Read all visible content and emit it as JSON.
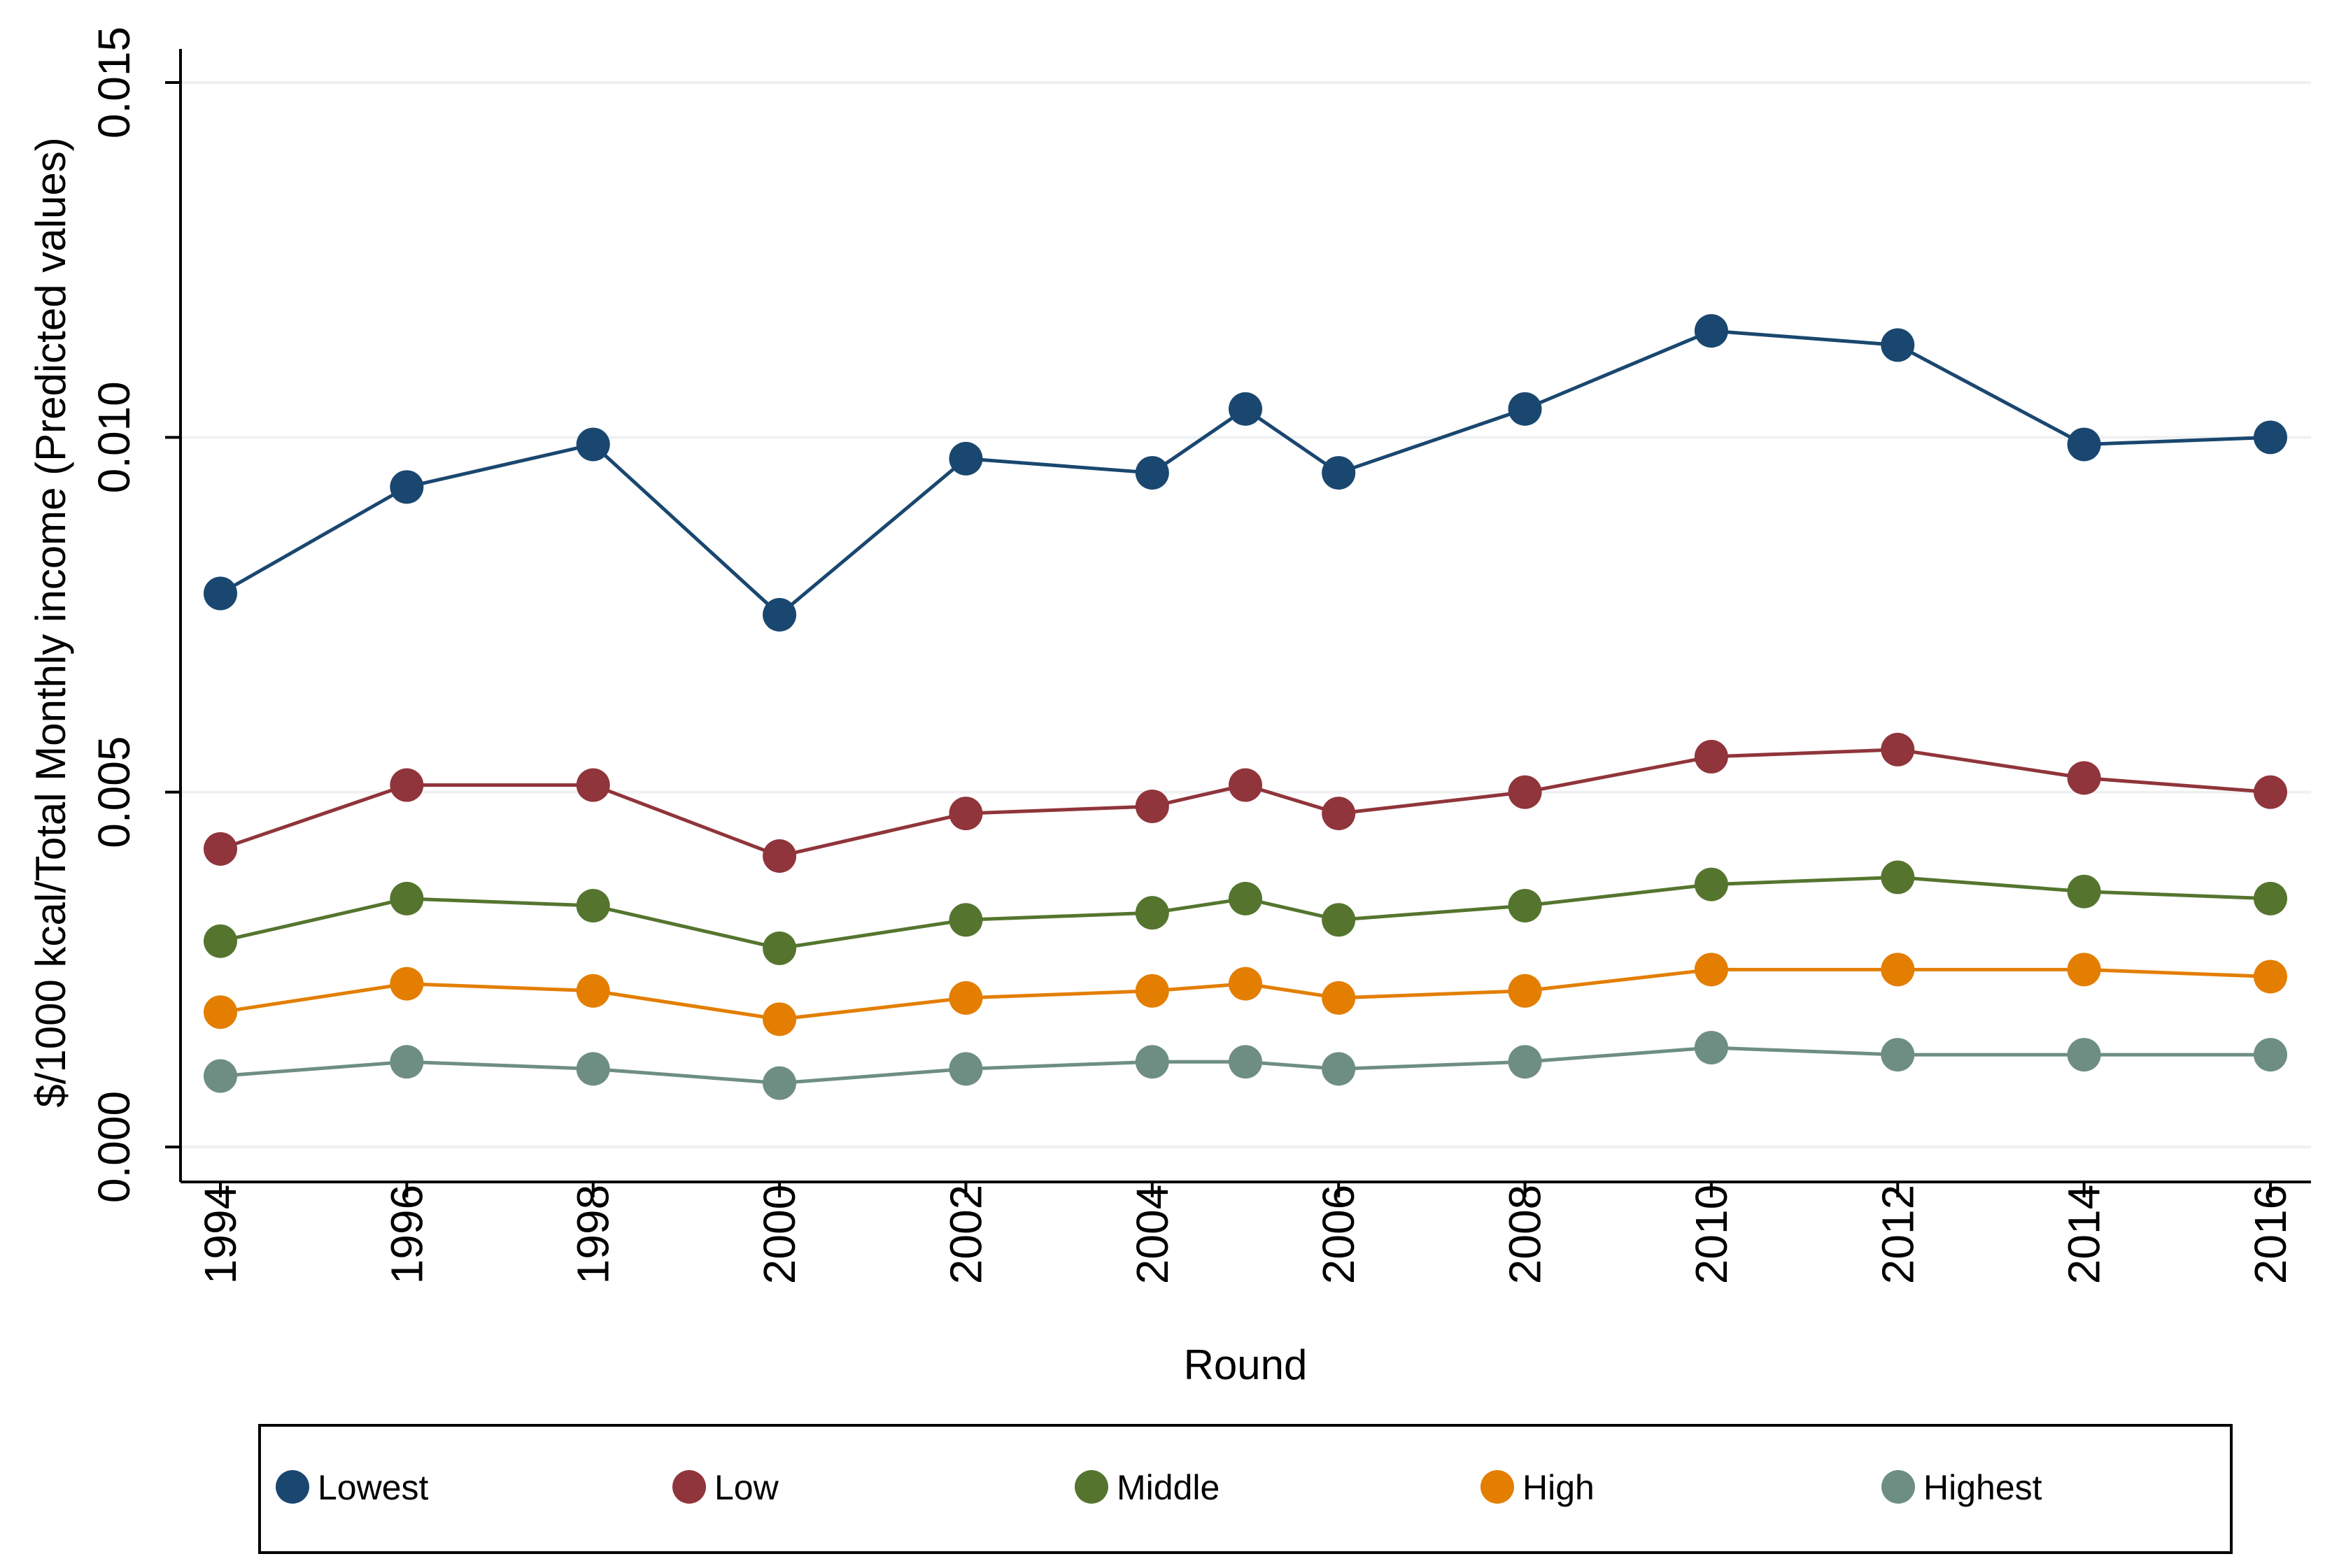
{
  "chart_data": {
    "type": "line",
    "title": "",
    "xlabel": "Round",
    "ylabel": "$/1000 kcal/Total Monthly income (Predicted values)",
    "x": [
      1994,
      1996,
      1998,
      2000,
      2002,
      2004,
      2005,
      2006,
      2008,
      2010,
      2012,
      2014,
      2016
    ],
    "x_ticks": [
      "1994",
      "1996",
      "1998",
      "2000",
      "2002",
      "2004",
      "2006",
      "2008",
      "2010",
      "2012",
      "2014",
      "2016"
    ],
    "x_tick_values": [
      1994,
      1996,
      1998,
      2000,
      2002,
      2004,
      2006,
      2008,
      2010,
      2012,
      2014,
      2016
    ],
    "y_ticks": [
      "0.000",
      "0.005",
      "0.010",
      "0.015"
    ],
    "y_tick_values": [
      0.0,
      0.005,
      0.01,
      0.015
    ],
    "xlim": [
      1993.6,
      2016.4
    ],
    "ylim": [
      -0.0005,
      0.0155
    ],
    "grid": true,
    "legend_position": "bottom",
    "series": [
      {
        "name": "Lowest",
        "color": "#1a476f",
        "values": [
          0.0078,
          0.0093,
          0.0099,
          0.0075,
          0.0097,
          0.0095,
          0.0104,
          0.0095,
          0.0104,
          0.0115,
          0.0113,
          0.0099,
          0.01
        ]
      },
      {
        "name": "Low",
        "color": "#90353b",
        "values": [
          0.0042,
          0.0051,
          0.0051,
          0.0041,
          0.0047,
          0.0048,
          0.0051,
          0.0047,
          0.005,
          0.0055,
          0.0056,
          0.0052,
          0.005
        ]
      },
      {
        "name": "Middle",
        "color": "#55752f",
        "values": [
          0.0029,
          0.0035,
          0.0034,
          0.0028,
          0.0032,
          0.0033,
          0.0035,
          0.0032,
          0.0034,
          0.0037,
          0.0038,
          0.0036,
          0.0035
        ]
      },
      {
        "name": "High",
        "color": "#e37e00",
        "values": [
          0.0019,
          0.0023,
          0.0022,
          0.0018,
          0.0021,
          0.0022,
          0.0023,
          0.0021,
          0.0022,
          0.0025,
          0.0025,
          0.0025,
          0.0024
        ]
      },
      {
        "name": "Highest",
        "color": "#6e8e84",
        "values": [
          0.001,
          0.0012,
          0.0011,
          0.0009,
          0.0011,
          0.0012,
          0.0012,
          0.0011,
          0.0012,
          0.0014,
          0.0013,
          0.0013,
          0.0013
        ]
      }
    ]
  }
}
